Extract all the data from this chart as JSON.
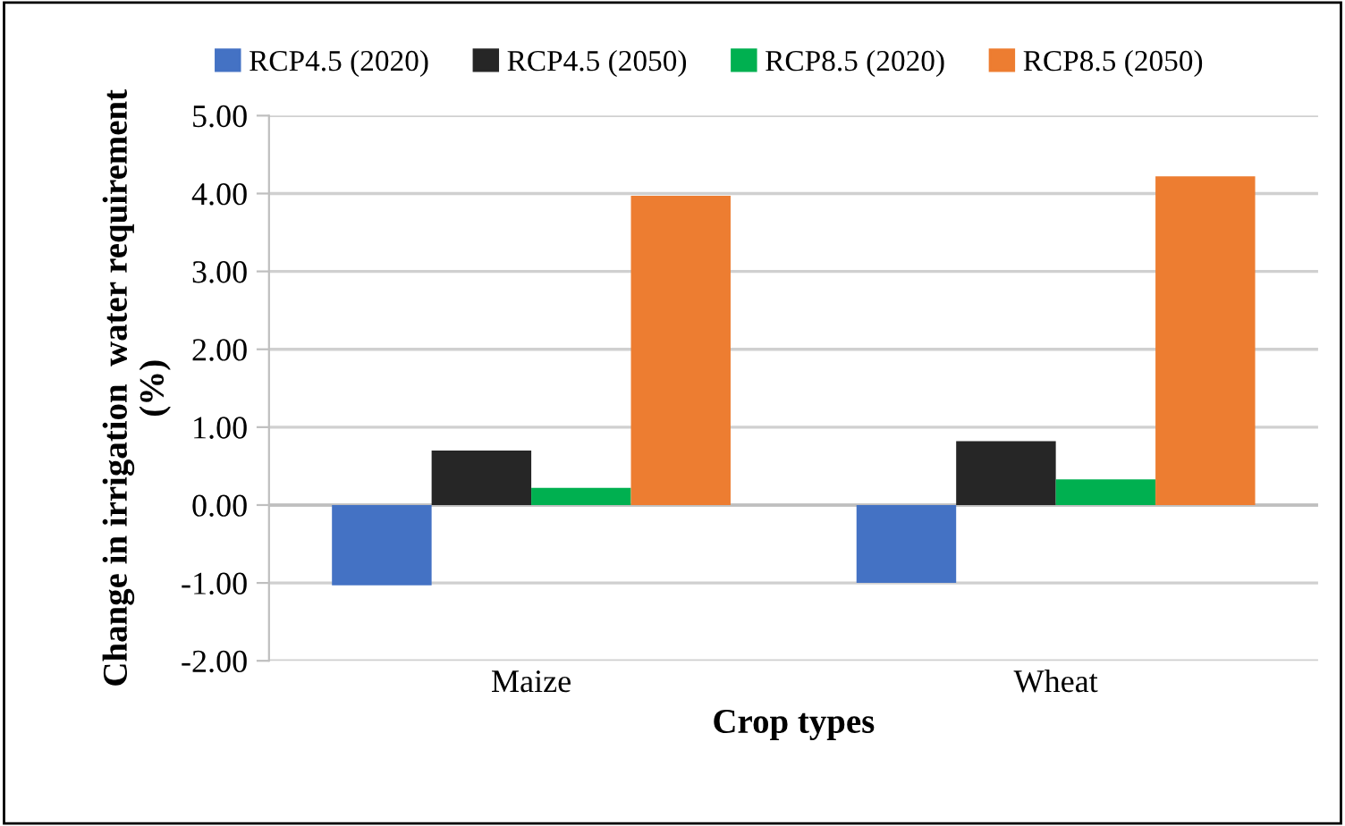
{
  "chart_data": {
    "type": "bar",
    "xlabel": "Crop types",
    "ylabel": "Change in irrigation  water requirement\n(%)",
    "categories": [
      "Maize",
      "Wheat"
    ],
    "series": [
      {
        "name": "RCP4.5 (2020)",
        "color": "#4472c4",
        "values": [
          -1.03,
          -1.0
        ]
      },
      {
        "name": "RCP4.5 (2050)",
        "color": "#262626",
        "values": [
          0.7,
          0.82
        ]
      },
      {
        "name": "RCP8.5 (2020)",
        "color": "#00b050",
        "values": [
          0.22,
          0.33
        ]
      },
      {
        "name": "RCP8.5 (2050)",
        "color": "#ed7d31",
        "values": [
          3.97,
          4.22
        ]
      }
    ],
    "ylim": [
      -2,
      5
    ],
    "yticks": [
      {
        "value": -2,
        "label": "-2.00"
      },
      {
        "value": -1,
        "label": "-1.00"
      },
      {
        "value": 0,
        "label": "0.00"
      },
      {
        "value": 1,
        "label": "1.00"
      },
      {
        "value": 2,
        "label": "2.00"
      },
      {
        "value": 3,
        "label": "3.00"
      },
      {
        "value": 4,
        "label": "4.00"
      },
      {
        "value": 5,
        "label": "5.00"
      }
    ],
    "grid": "y",
    "legend": "top"
  }
}
